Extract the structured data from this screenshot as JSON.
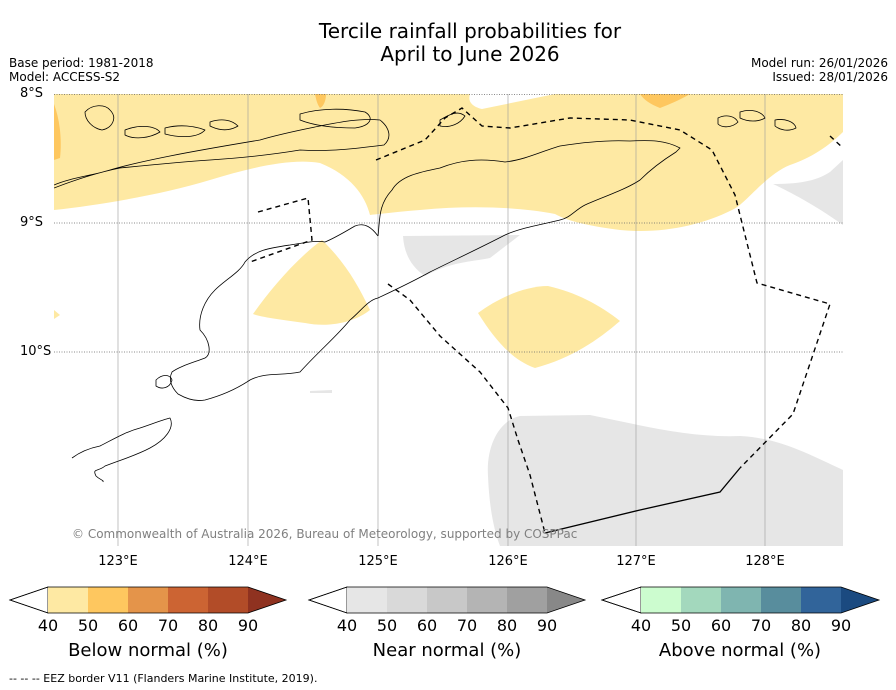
{
  "title_line1": "Tercile rainfall probabilities for",
  "title_line2": "April to June 2026",
  "base_period": "Base period: 1981-2018",
  "model": "Model: ACCESS-S2",
  "model_run": "Model run: 26/01/2026",
  "issued": "Issued: 28/01/2026",
  "lat_labels": [
    "8°S",
    "9°S",
    "10°S"
  ],
  "lon_labels": [
    "123°E",
    "124°E",
    "125°E",
    "126°E",
    "127°E",
    "128°E"
  ],
  "copyright": "© Commonwealth of Australia 2026, Bureau of Meteorology, supported by COSPPac",
  "colorbars": [
    {
      "label": "Below normal (%)",
      "ticks": [
        "40",
        "50",
        "60",
        "70",
        "80",
        "90"
      ],
      "colors": [
        "#fee9a3",
        "#fec75f",
        "#e4944a",
        "#cc6433",
        "#b24c28",
        "#8f3220"
      ]
    },
    {
      "label": "Near normal (%)",
      "ticks": [
        "40",
        "50",
        "60",
        "70",
        "80",
        "90"
      ],
      "colors": [
        "#e6e6e6",
        "#d9d9d9",
        "#c8c8c8",
        "#b4b4b4",
        "#a0a0a0",
        "#888888"
      ]
    },
    {
      "label": "Above normal (%)",
      "ticks": [
        "40",
        "50",
        "60",
        "70",
        "80",
        "90"
      ],
      "colors": [
        "#ccfccf",
        "#a3d8bd",
        "#7fb5b0",
        "#588d9d",
        "#31649a",
        "#1b4a80"
      ]
    }
  ],
  "legend_text": "--  --  -- EEZ border V11 (Flanders Marine Institute, 2019).",
  "map_colors": {
    "below_normal_40_50": "#fee9a3",
    "below_normal_50_60": "#fec75f",
    "near_normal_40_50": "#e6e6e6"
  }
}
